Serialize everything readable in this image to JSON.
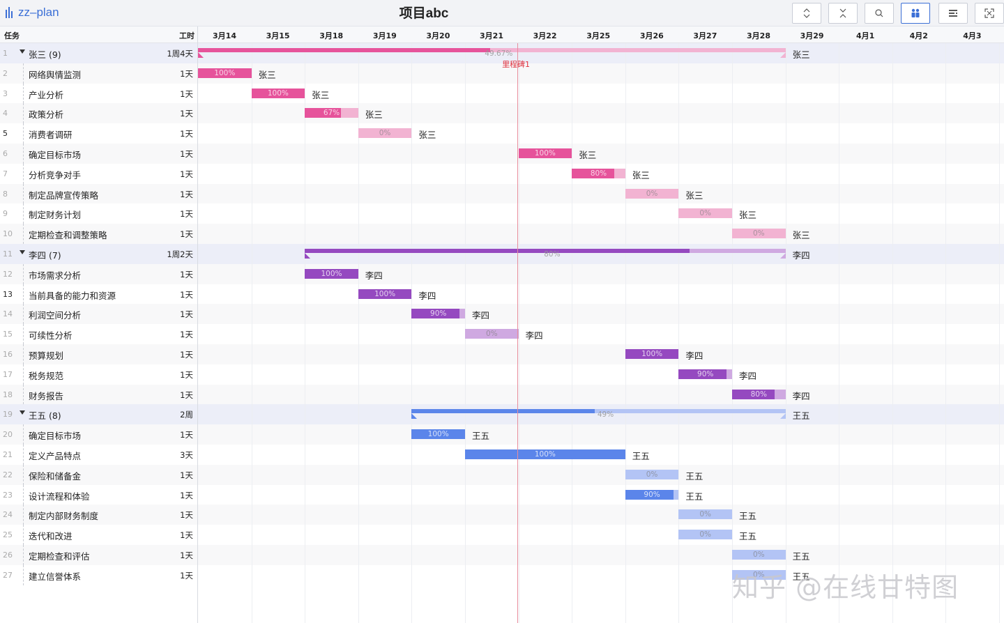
{
  "app": {
    "logo_text": "zz–plan",
    "project_title": "项目abc"
  },
  "toolbar": [
    {
      "name": "expand-all-button",
      "icon": "expand-vertical-icon",
      "active": false
    },
    {
      "name": "collapse-all-button",
      "icon": "collapse-vertical-icon",
      "active": false
    },
    {
      "name": "search-button",
      "icon": "search-icon",
      "active": false
    },
    {
      "name": "resource-view-button",
      "icon": "people-icon",
      "active": true
    },
    {
      "name": "columns-button",
      "icon": "list-settings-icon",
      "active": false
    },
    {
      "name": "fullscreen-button",
      "icon": "fullscreen-icon",
      "active": false
    }
  ],
  "header": {
    "task_col": "任务",
    "work_col": "工时"
  },
  "timeline": {
    "dates": [
      "3月14",
      "3月15",
      "3月18",
      "3月19",
      "3月20",
      "3月21",
      "3月22",
      "3月25",
      "3月26",
      "3月27",
      "3月28",
      "3月29",
      "4月1",
      "4月2",
      "4月3"
    ],
    "today_index": 5.98,
    "milestone": {
      "label": "里程碑1"
    }
  },
  "colors": {
    "zhangsan": {
      "fill": "#e6539b",
      "light": "#f2b3d2"
    },
    "lisi": {
      "fill": "#9549c0",
      "light": "#cfa9e1"
    },
    "wangwu": {
      "fill": "#5b85ea",
      "light": "#b3c4f5"
    },
    "group_row": "#eceef8",
    "today_line": "#e88d9c",
    "milestone": "#e0333f"
  },
  "rows": [
    {
      "idx": "1",
      "name": "张三 (9)",
      "work": "1周4天",
      "group": true,
      "res": "zhangsan",
      "start": 0,
      "dur": 11,
      "progress": 49.67,
      "pct": "49.67%",
      "assignee": "张三"
    },
    {
      "idx": "2",
      "name": "网络舆情监测",
      "work": "1天",
      "res": "zhangsan",
      "start": 0,
      "dur": 1,
      "progress": 100,
      "pct": "100%",
      "assignee": "张三"
    },
    {
      "idx": "3",
      "name": "产业分析",
      "work": "1天",
      "res": "zhangsan",
      "start": 1,
      "dur": 1,
      "progress": 100,
      "pct": "100%",
      "assignee": "张三"
    },
    {
      "idx": "4",
      "name": "政策分析",
      "work": "1天",
      "res": "zhangsan",
      "start": 2,
      "dur": 1,
      "progress": 67,
      "pct": "67%",
      "assignee": "张三"
    },
    {
      "idx": "5",
      "name": "消费者调研",
      "work": "1天",
      "res": "zhangsan",
      "start": 3,
      "dur": 1,
      "progress": 0,
      "pct": "0%",
      "assignee": "张三",
      "idx_dark": true
    },
    {
      "idx": "6",
      "name": "确定目标市场",
      "work": "1天",
      "res": "zhangsan",
      "start": 6,
      "dur": 1,
      "progress": 100,
      "pct": "100%",
      "assignee": "张三"
    },
    {
      "idx": "7",
      "name": "分析竞争对手",
      "work": "1天",
      "res": "zhangsan",
      "start": 7,
      "dur": 1,
      "progress": 80,
      "pct": "80%",
      "assignee": "张三"
    },
    {
      "idx": "8",
      "name": "制定品牌宣传策略",
      "work": "1天",
      "res": "zhangsan",
      "start": 8,
      "dur": 1,
      "progress": 0,
      "pct": "0%",
      "assignee": "张三"
    },
    {
      "idx": "9",
      "name": "制定财务计划",
      "work": "1天",
      "res": "zhangsan",
      "start": 9,
      "dur": 1,
      "progress": 0,
      "pct": "0%",
      "assignee": "张三"
    },
    {
      "idx": "10",
      "name": "定期检查和调整策略",
      "work": "1天",
      "res": "zhangsan",
      "start": 10,
      "dur": 1,
      "progress": 0,
      "pct": "0%",
      "assignee": "张三"
    },
    {
      "idx": "11",
      "name": "李四 (7)",
      "work": "1周2天",
      "group": true,
      "res": "lisi",
      "start": 2,
      "dur": 9,
      "progress": 80,
      "pct": "80%",
      "assignee": "李四"
    },
    {
      "idx": "12",
      "name": "市场需求分析",
      "work": "1天",
      "res": "lisi",
      "start": 2,
      "dur": 1,
      "progress": 100,
      "pct": "100%",
      "assignee": "李四"
    },
    {
      "idx": "13",
      "name": "当前具备的能力和资源",
      "work": "1天",
      "res": "lisi",
      "start": 3,
      "dur": 1,
      "progress": 100,
      "pct": "100%",
      "assignee": "李四",
      "idx_dark": true
    },
    {
      "idx": "14",
      "name": "利润空间分析",
      "work": "1天",
      "res": "lisi",
      "start": 4,
      "dur": 1,
      "progress": 90,
      "pct": "90%",
      "assignee": "李四"
    },
    {
      "idx": "15",
      "name": "可续性分析",
      "work": "1天",
      "res": "lisi",
      "start": 5,
      "dur": 1,
      "progress": 0,
      "pct": "0%",
      "assignee": "李四"
    },
    {
      "idx": "16",
      "name": "预算规划",
      "work": "1天",
      "res": "lisi",
      "start": 8,
      "dur": 1,
      "progress": 100,
      "pct": "100%",
      "assignee": "李四"
    },
    {
      "idx": "17",
      "name": "税务规范",
      "work": "1天",
      "res": "lisi",
      "start": 9,
      "dur": 1,
      "progress": 90,
      "pct": "90%",
      "assignee": "李四"
    },
    {
      "idx": "18",
      "name": "财务报告",
      "work": "1天",
      "res": "lisi",
      "start": 10,
      "dur": 1,
      "progress": 80,
      "pct": "80%",
      "assignee": "李四"
    },
    {
      "idx": "19",
      "name": "王五 (8)",
      "work": "2周",
      "group": true,
      "res": "wangwu",
      "start": 4,
      "dur": 7,
      "progress": 49,
      "pct": "49%",
      "assignee": "王五"
    },
    {
      "idx": "20",
      "name": "确定目标市场",
      "work": "1天",
      "res": "wangwu",
      "start": 4,
      "dur": 1,
      "progress": 100,
      "pct": "100%",
      "assignee": "王五"
    },
    {
      "idx": "21",
      "name": "定义产品特点",
      "work": "3天",
      "res": "wangwu",
      "start": 5,
      "dur": 3,
      "progress": 100,
      "pct": "100%",
      "assignee": "王五"
    },
    {
      "idx": "22",
      "name": "保险和储备金",
      "work": "1天",
      "res": "wangwu",
      "start": 8,
      "dur": 1,
      "progress": 0,
      "pct": "0%",
      "assignee": "王五"
    },
    {
      "idx": "23",
      "name": "设计流程和体验",
      "work": "1天",
      "res": "wangwu",
      "start": 8,
      "dur": 1,
      "progress": 90,
      "pct": "90%",
      "assignee": "王五"
    },
    {
      "idx": "24",
      "name": "制定内部财务制度",
      "work": "1天",
      "res": "wangwu",
      "start": 9,
      "dur": 1,
      "progress": 0,
      "pct": "0%",
      "assignee": "王五"
    },
    {
      "idx": "25",
      "name": "迭代和改进",
      "work": "1天",
      "res": "wangwu",
      "start": 9,
      "dur": 1,
      "progress": 0,
      "pct": "0%",
      "assignee": "王五"
    },
    {
      "idx": "26",
      "name": "定期检查和评估",
      "work": "1天",
      "res": "wangwu",
      "start": 10,
      "dur": 1,
      "progress": 0,
      "pct": "0%",
      "assignee": "王五"
    },
    {
      "idx": "27",
      "name": "建立信誉体系",
      "work": "1天",
      "res": "wangwu",
      "start": 10,
      "dur": 1,
      "progress": 0,
      "pct": "0%",
      "assignee": "王五"
    }
  ],
  "watermark": "知乎 @在线甘特图"
}
